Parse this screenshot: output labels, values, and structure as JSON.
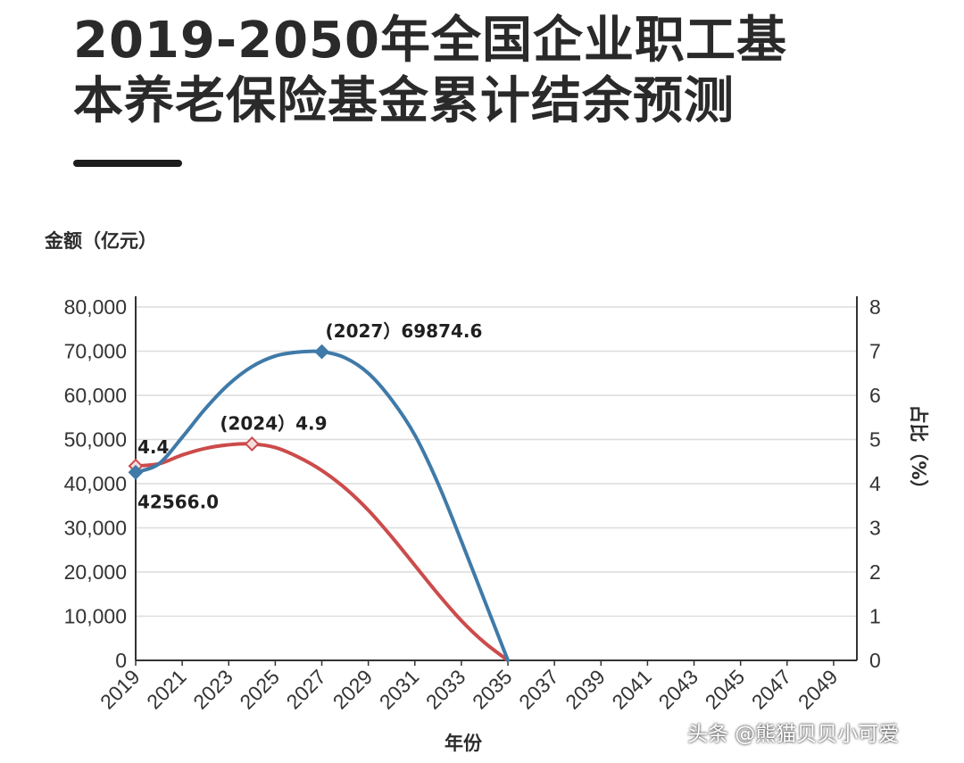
{
  "title": {
    "line1": "2019-2050年全国企业职工基",
    "line2": "本养老保险基金累计结余预测"
  },
  "watermark": "头条 @熊猫贝贝小可爱",
  "chart_data": {
    "type": "line",
    "ylabel_left": "金额（亿元）",
    "ylabel_right": "占比（%）",
    "xlabel": "年份",
    "x_ticks": [
      "2019",
      "2021",
      "2023",
      "2025",
      "2027",
      "2029",
      "2031",
      "2033",
      "2035",
      "2037",
      "2039",
      "2041",
      "2043",
      "2045",
      "2047",
      "2049"
    ],
    "xlim": [
      2019,
      2050
    ],
    "y_left": {
      "lim": [
        0,
        80000
      ],
      "ticks": [
        "0",
        "10,000",
        "20,000",
        "30,000",
        "40,000",
        "50,000",
        "60,000",
        "70,000",
        "80,000"
      ]
    },
    "y_right": {
      "lim": [
        0,
        8
      ],
      "ticks": [
        "0",
        "1",
        "2",
        "3",
        "4",
        "5",
        "6",
        "7",
        "8"
      ]
    },
    "grid": true,
    "series": [
      {
        "axis": "left",
        "color": "#3f7aa8",
        "x": [
          2019,
          2020,
          2021,
          2022,
          2023,
          2024,
          2025,
          2026,
          2027,
          2028,
          2029,
          2030,
          2031,
          2032,
          2033,
          2034,
          2035
        ],
        "y": [
          42566.0,
          44500,
          50500,
          57000,
          62500,
          66500,
          68900,
          69800,
          69874.6,
          68500,
          65000,
          59000,
          51000,
          40000,
          27000,
          13500,
          0
        ]
      },
      {
        "axis": "right",
        "color": "#cc4b4b",
        "x": [
          2019,
          2020,
          2021,
          2022,
          2023,
          2024,
          2025,
          2026,
          2027,
          2028,
          2029,
          2030,
          2031,
          2032,
          2033,
          2034,
          2035
        ],
        "y": [
          4.4,
          4.45,
          4.65,
          4.8,
          4.88,
          4.9,
          4.82,
          4.6,
          4.3,
          3.9,
          3.4,
          2.8,
          2.15,
          1.5,
          0.9,
          0.4,
          0
        ]
      }
    ],
    "annotations": [
      {
        "text": "(2027）69874.6",
        "series": 0,
        "x": 2027
      },
      {
        "text": "(2024）4.9",
        "series": 1,
        "x": 2024
      },
      {
        "text": "4.4",
        "series": 1,
        "x": 2019
      },
      {
        "text": "42566.0",
        "series": 0,
        "x": 2019
      }
    ]
  }
}
